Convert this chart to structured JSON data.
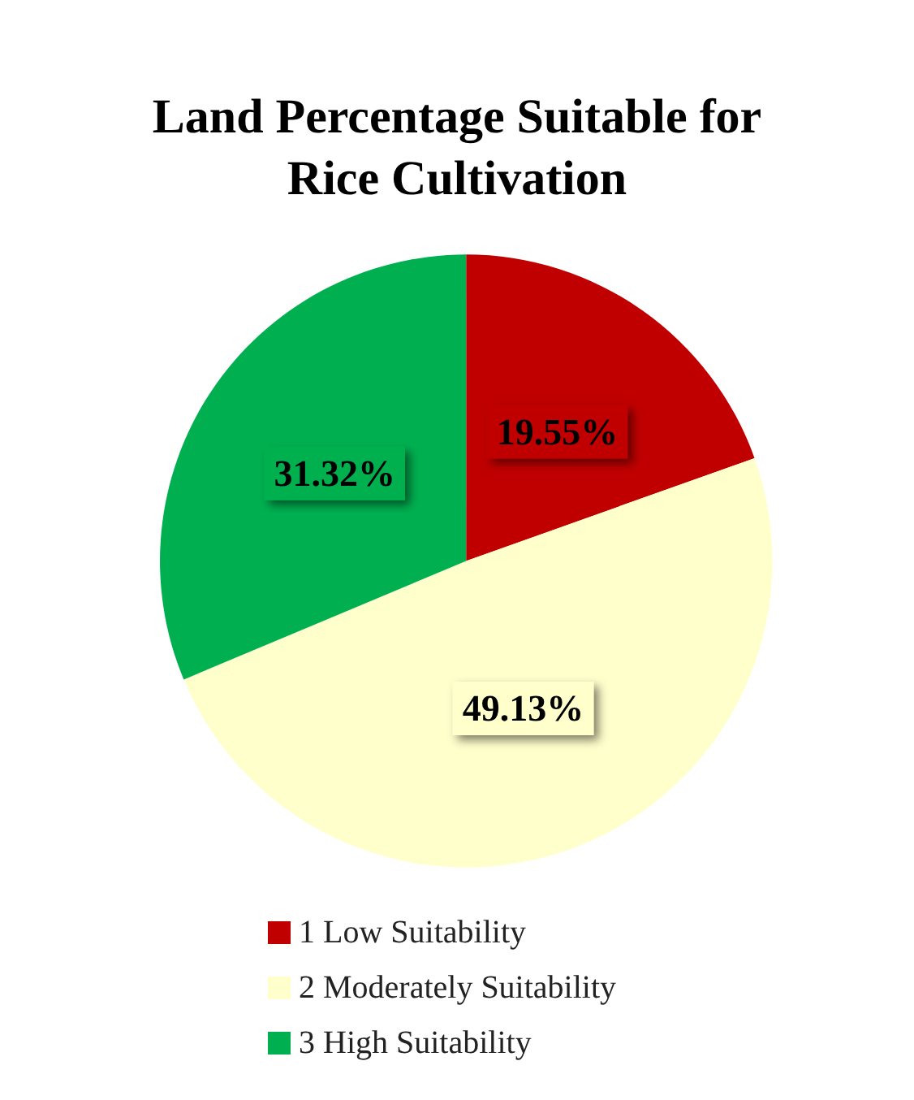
{
  "chart_data": {
    "type": "pie",
    "title": "Land Percentage Suitable for\nRice Cultivation",
    "categories": [
      "1 Low Suitability",
      "2 Moderately Suitability",
      "3 High Suitability"
    ],
    "values": [
      19.55,
      49.13,
      31.32
    ],
    "colors": [
      "#c00000",
      "#ffffcc",
      "#00b050"
    ],
    "value_labels": [
      "19.55%",
      "49.13%",
      "31.32%"
    ],
    "legend": "bottom"
  }
}
